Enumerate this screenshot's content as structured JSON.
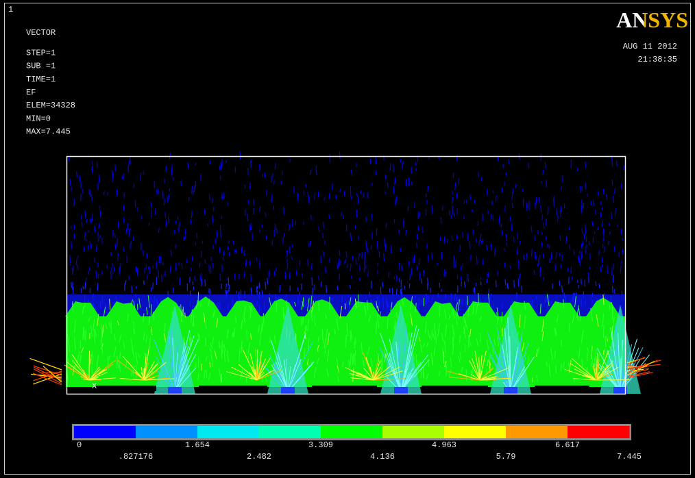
{
  "window_number": "1",
  "info": [
    "VECTOR",
    "STEP=1",
    "SUB =1",
    "TIME=1",
    "EF",
    "ELEM=34328",
    "MIN=0",
    "MAX=7.445"
  ],
  "logo": "ANSYS",
  "date": "AUG 11 2012",
  "time": "21:38:35",
  "axis_label": "X",
  "legend": {
    "colors": [
      "#0000ff",
      "#0090ff",
      "#00e8f0",
      "#00ffb0",
      "#00ff00",
      "#a8ff00",
      "#ffff00",
      "#ff9900",
      "#ff0000"
    ],
    "labels": [
      "0",
      ".827176",
      "1.654",
      "2.482",
      "3.309",
      "4.136",
      "4.963",
      "5.79",
      "6.617",
      "7.445"
    ]
  }
}
